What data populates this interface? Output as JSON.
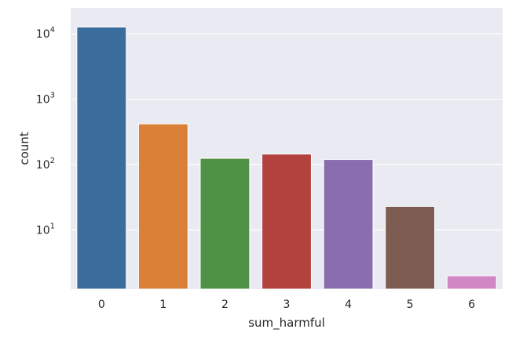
{
  "chart_data": {
    "type": "bar",
    "title": "",
    "xlabel": "sum_harmful",
    "ylabel": "count",
    "yscale": "log",
    "categories": [
      "0",
      "1",
      "2",
      "3",
      "4",
      "5",
      "6"
    ],
    "values": [
      12700,
      420,
      125,
      145,
      120,
      23,
      2
    ],
    "ylim": [
      1.25,
      25000
    ],
    "yticks": [
      {
        "value": 10,
        "base": "10",
        "exp": "1"
      },
      {
        "value": 100,
        "base": "10",
        "exp": "2"
      },
      {
        "value": 1000,
        "base": "10",
        "exp": "3"
      },
      {
        "value": 10000,
        "base": "10",
        "exp": "4"
      }
    ],
    "grid": true,
    "legend": "none",
    "style": {
      "background": "#EAEAF2",
      "grid_color": "#FFFFFF",
      "bar_colors": [
        "#3A6D9C",
        "#DA8137",
        "#4F9145",
        "#B3413E",
        "#8A6DAE",
        "#7F5C51",
        "#D287C5"
      ]
    }
  }
}
